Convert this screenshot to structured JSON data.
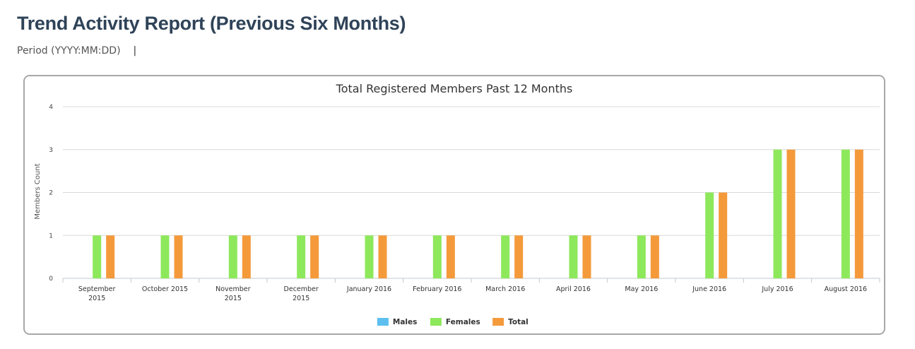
{
  "page": {
    "title": "Trend Activity Report (Previous Six Months)",
    "period_label": "Period (YYYY:MM:DD)",
    "period_separator": "|"
  },
  "colors": {
    "males": "#5bc0ef",
    "females": "#8ee85c",
    "total": "#f49a3b"
  },
  "chart_data": {
    "type": "bar",
    "title": "Total Registered Members Past 12 Months",
    "xlabel": "",
    "ylabel": "Members Count",
    "ylim": [
      0,
      4
    ],
    "yticks": [
      0,
      1,
      2,
      3,
      4
    ],
    "grid": true,
    "legend": "bottom-center",
    "categories": [
      [
        "September",
        "2015"
      ],
      [
        "October 2015"
      ],
      [
        "November",
        "2015"
      ],
      [
        "December",
        "2015"
      ],
      [
        "January 2016"
      ],
      [
        "February 2016"
      ],
      [
        "March 2016"
      ],
      [
        "April 2016"
      ],
      [
        "May 2016"
      ],
      [
        "June 2016"
      ],
      [
        "July 2016"
      ],
      [
        "August 2016"
      ]
    ],
    "series": [
      {
        "name": "Males",
        "color": "#5bc0ef",
        "values": [
          0,
          0,
          0,
          0,
          0,
          0,
          0,
          0,
          0,
          0,
          0,
          0
        ]
      },
      {
        "name": "Females",
        "color": "#8ee85c",
        "values": [
          1,
          1,
          1,
          1,
          1,
          1,
          1,
          1,
          1,
          2,
          3,
          3
        ]
      },
      {
        "name": "Total",
        "color": "#f49a3b",
        "values": [
          1,
          1,
          1,
          1,
          1,
          1,
          1,
          1,
          1,
          2,
          3,
          3
        ]
      }
    ]
  }
}
